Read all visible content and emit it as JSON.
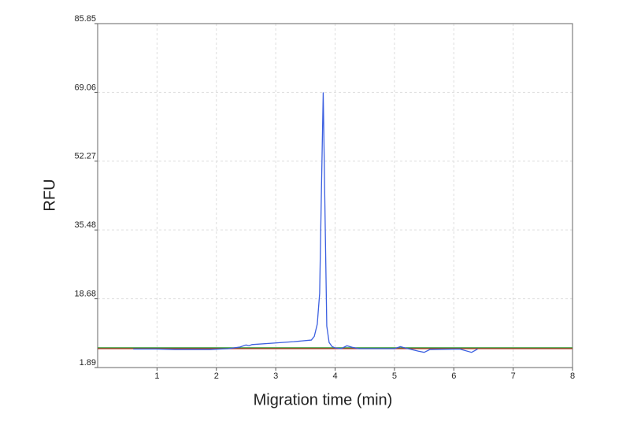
{
  "chart_data": {
    "type": "line",
    "ylabel": "RFU",
    "xlabel": "Migration time (min)",
    "xlim": [
      0,
      8
    ],
    "xticks": [
      1,
      2,
      3,
      4,
      5,
      6,
      7,
      8
    ],
    "ylim": [
      1.89,
      85.85
    ],
    "yticks": [
      1.89,
      18.68,
      35.48,
      52.27,
      69.06,
      85.85
    ],
    "grid": true,
    "series": [
      {
        "color": "#2e9a2e",
        "x": [
          0,
          8
        ],
        "values": [
          6.7,
          6.7
        ]
      },
      {
        "color": "#b5332a",
        "x": [
          0,
          8
        ],
        "values": [
          6.5,
          6.5
        ]
      },
      {
        "color": "#3b5fe0",
        "x": [
          0.6,
          1.0,
          1.3,
          1.9,
          2.2,
          2.4,
          2.5,
          2.55,
          2.6,
          3.0,
          3.3,
          3.6,
          3.65,
          3.7,
          3.74,
          3.77,
          3.8,
          3.83,
          3.86,
          3.9,
          3.95,
          4.0,
          4.1,
          4.2,
          4.3,
          4.4,
          5.0,
          5.1,
          5.2,
          5.4,
          5.5,
          5.6,
          6.1,
          6.3,
          6.4
        ],
        "values": [
          6.4,
          6.4,
          6.3,
          6.3,
          6.5,
          6.9,
          7.4,
          7.2,
          7.5,
          7.9,
          8.2,
          8.6,
          9.5,
          12.5,
          20,
          45,
          69.06,
          40,
          12,
          8,
          7,
          6.7,
          6.5,
          7.2,
          6.8,
          6.5,
          6.5,
          7.0,
          6.6,
          5.9,
          5.6,
          6.3,
          6.4,
          5.6,
          6.4
        ]
      }
    ]
  }
}
